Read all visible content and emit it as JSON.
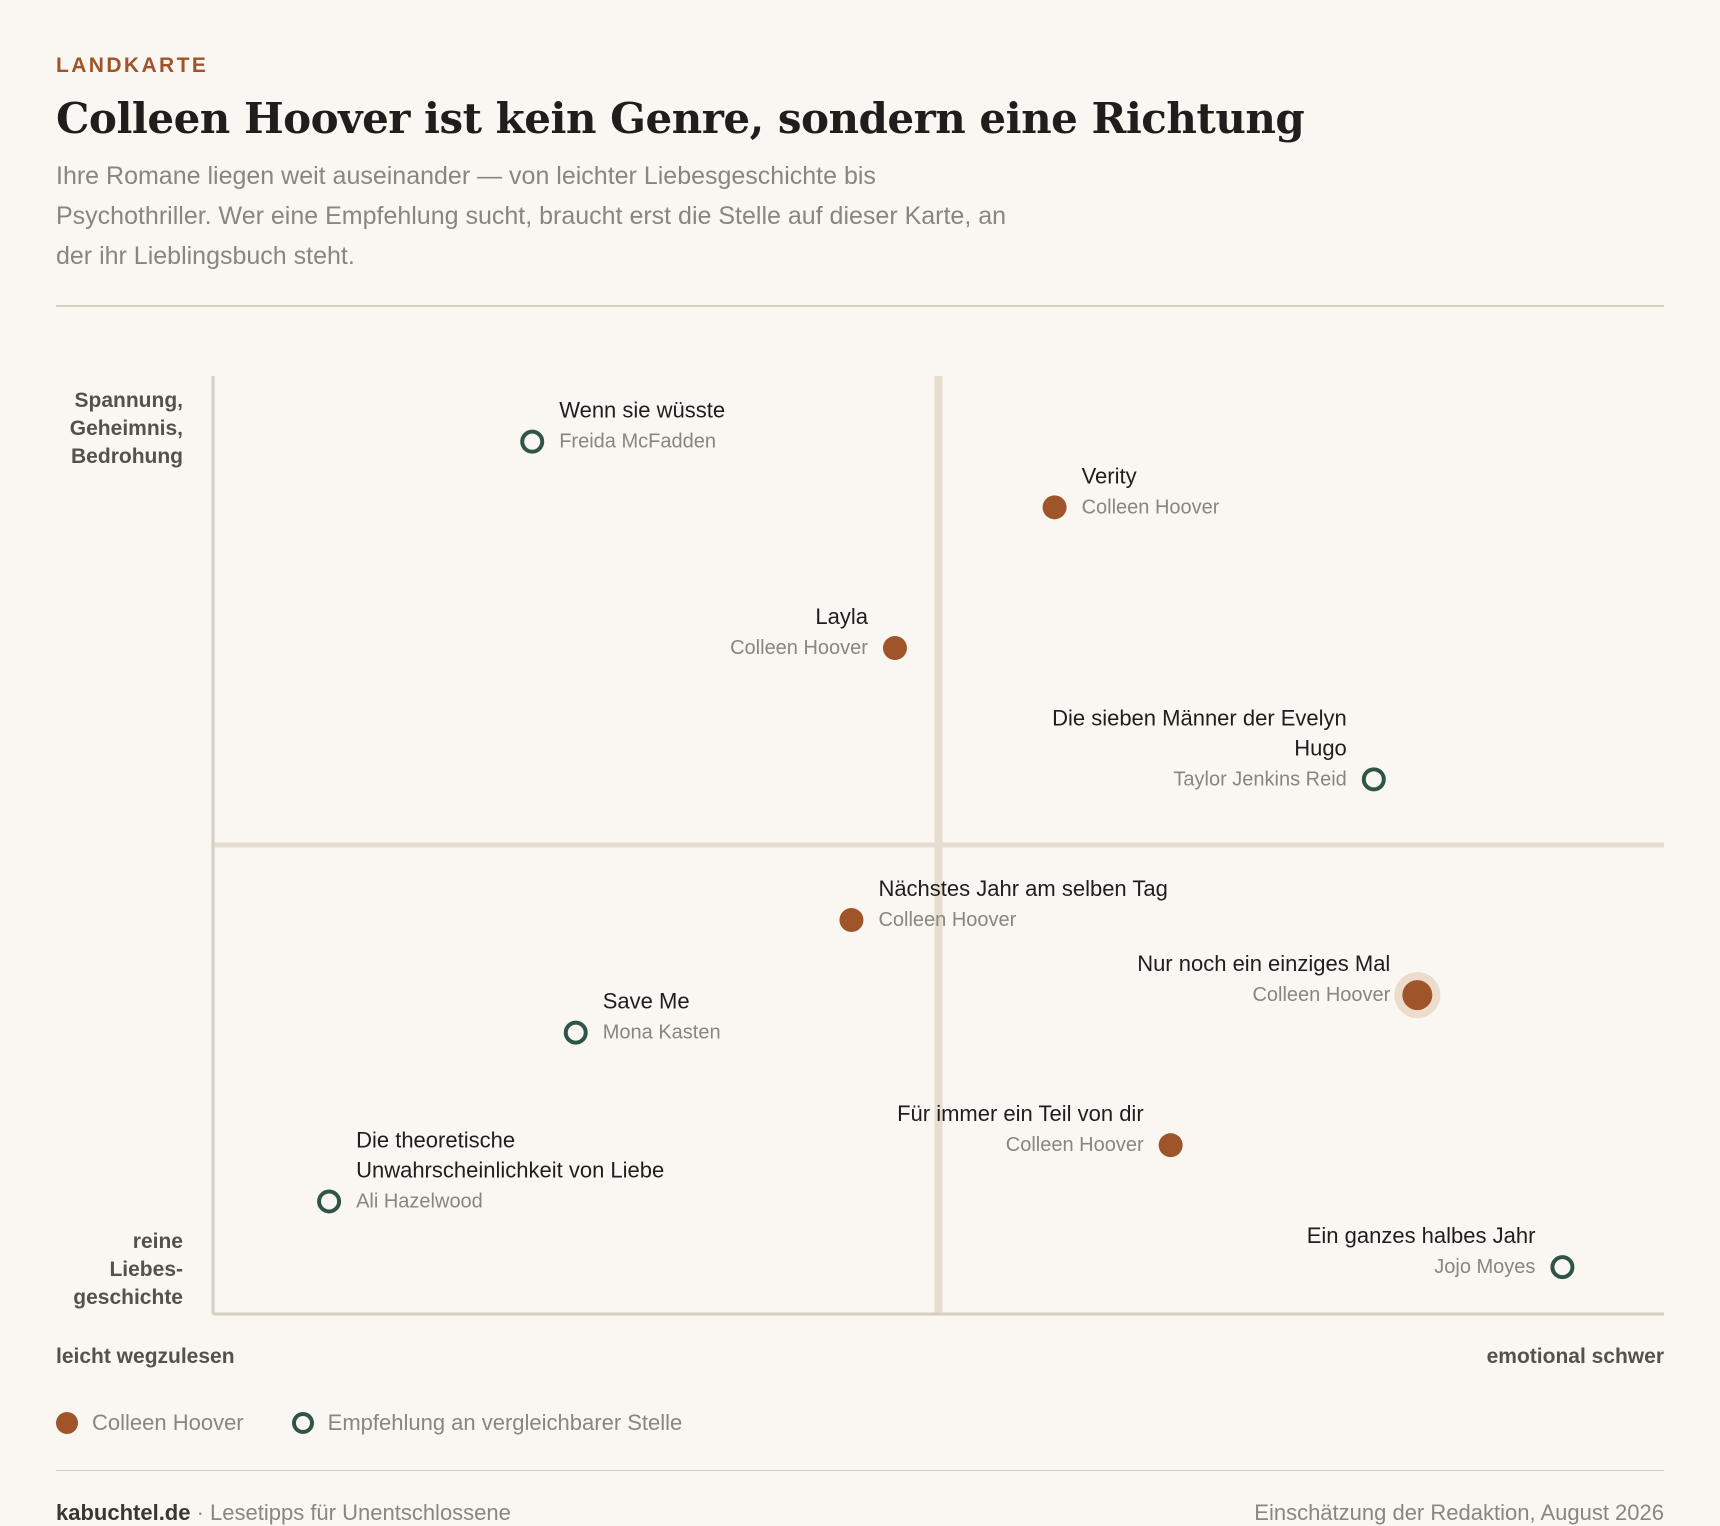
{
  "kicker": "LANDKARTE",
  "title": "Colleen Hoover ist kein Genre, sondern eine Richtung",
  "subtitle": "Ihre Romane liegen weit auseinander — von leichter Liebesgeschichte bis Psychothriller. Wer eine Empfehlung sucht, braucht erst die Stelle auf dieser Karte, an der ihr Lieblingsbuch steht.",
  "colors": {
    "hoover": "#a0542a",
    "recommendation": "#2f5549",
    "axis": "#d6cfc3"
  },
  "chart_data": {
    "type": "scatter",
    "x_axis": {
      "min_label": "leicht wegzulesen",
      "max_label": "emotional schwer",
      "range": [
        0,
        100
      ]
    },
    "y_axis": {
      "top_label": [
        "Spannung,",
        "Geheimnis,",
        "Bedrohung"
      ],
      "bottom_label": [
        "reine",
        "Liebes-",
        "geschichte"
      ],
      "range": [
        0,
        100
      ]
    },
    "quadrant_dividers": {
      "x": 50,
      "y": 50
    },
    "series": [
      {
        "name": "Colleen Hoover",
        "marker": "filled",
        "points": [
          {
            "title": [
              "Verity"
            ],
            "author": "Colleen Hoover",
            "x": 58,
            "y": 86,
            "label_side": "right"
          },
          {
            "title": [
              "Layla"
            ],
            "author": "Colleen Hoover",
            "x": 47,
            "y": 71,
            "label_side": "left"
          },
          {
            "title": [
              "Nächstes Jahr am selben Tag"
            ],
            "author": "Colleen Hoover",
            "x": 44,
            "y": 42,
            "label_side": "right"
          },
          {
            "title": [
              "Nur noch ein einziges Mal"
            ],
            "author": "Colleen Hoover",
            "x": 83,
            "y": 34,
            "label_side": "left",
            "highlight": true
          },
          {
            "title": [
              "Für immer ein Teil von dir"
            ],
            "author": "Colleen Hoover",
            "x": 66,
            "y": 18,
            "label_side": "left"
          }
        ]
      },
      {
        "name": "Empfehlung an vergleichbarer Stelle",
        "marker": "open",
        "points": [
          {
            "title": [
              "Wenn sie wüsste"
            ],
            "author": "Freida McFadden",
            "x": 22,
            "y": 93,
            "label_side": "right"
          },
          {
            "title": [
              "Die sieben Männer der Evelyn",
              "Hugo"
            ],
            "author": "Taylor Jenkins Reid",
            "x": 80,
            "y": 57,
            "label_side": "left"
          },
          {
            "title": [
              "Save Me"
            ],
            "author": "Mona Kasten",
            "x": 25,
            "y": 30,
            "label_side": "right"
          },
          {
            "title": [
              "Die theoretische",
              "Unwahrscheinlichkeit von Liebe"
            ],
            "author": "Ali Hazelwood",
            "x": 8,
            "y": 12,
            "label_side": "right"
          },
          {
            "title": [
              "Ein ganzes halbes Jahr"
            ],
            "author": "Jojo Moyes",
            "x": 93,
            "y": 5,
            "label_side": "left"
          }
        ]
      }
    ]
  },
  "legend": {
    "hoover": "Colleen Hoover",
    "recommendation": "Empfehlung an vergleichbarer Stelle"
  },
  "footer": {
    "brand": "kabuchtel.de",
    "tagline": " · Lesetipps für Unentschlossene",
    "source": "Einschätzung der Redaktion, August 2026"
  }
}
